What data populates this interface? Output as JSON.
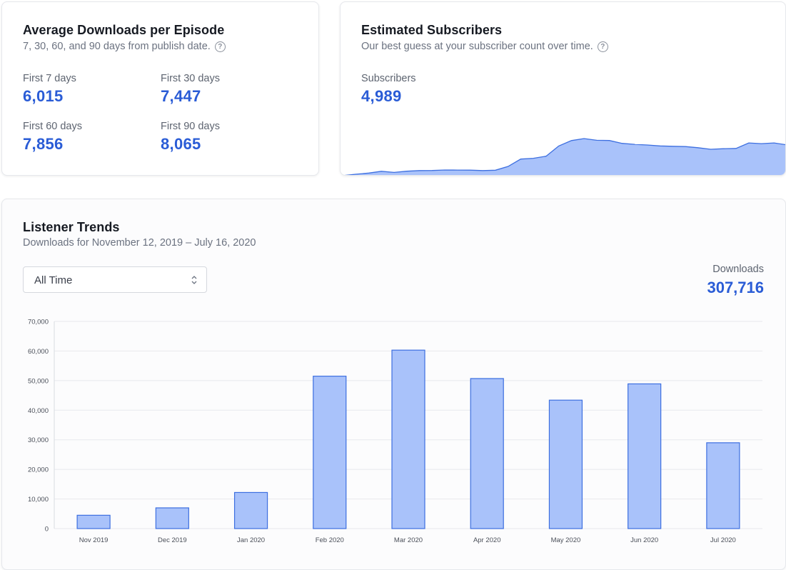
{
  "avg_downloads": {
    "title": "Average Downloads per Episode",
    "subtitle": "7, 30, 60, and 90 days from publish date.",
    "help_icon": "question-circle-icon",
    "stats": [
      {
        "label": "First 7 days",
        "value": "6,015"
      },
      {
        "label": "First 30 days",
        "value": "7,447"
      },
      {
        "label": "First 60 days",
        "value": "7,856"
      },
      {
        "label": "First 90 days",
        "value": "8,065"
      }
    ]
  },
  "subscribers": {
    "title": "Estimated Subscribers",
    "subtitle": "Our best guess at your subscriber count over time.",
    "help_icon": "question-circle-icon",
    "label": "Subscribers",
    "value": "4,989",
    "sparkline": [
      30,
      290,
      520,
      870,
      640,
      890,
      1010,
      1030,
      1130,
      1110,
      1100,
      1010,
      1080,
      1830,
      3270,
      3420,
      3830,
      5840,
      6910,
      7300,
      6960,
      6920,
      6360,
      6160,
      6030,
      5860,
      5780,
      5730,
      5500,
      5200,
      5310,
      5360,
      6440,
      6300,
      6440,
      6060
    ],
    "fill_color": "#a9c2fa",
    "line_color": "#3d6fe0"
  },
  "trends": {
    "title": "Listener Trends",
    "subtitle": "Downloads for November 12, 2019 – July 16, 2020",
    "range_selected": "All Time",
    "range_icon": "chevron-updown-icon",
    "downloads_label": "Downloads",
    "downloads_total": "307,716"
  },
  "chart_data": {
    "type": "bar",
    "categories": [
      "Nov 2019",
      "Dec 2019",
      "Jan 2020",
      "Feb 2020",
      "Mar 2020",
      "Apr 2020",
      "May 2020",
      "Jun 2020",
      "Jul 2020"
    ],
    "values": [
      4500,
      7000,
      12200,
      51500,
      60300,
      50700,
      43400,
      48900,
      29000
    ],
    "ylim": [
      0,
      70000
    ],
    "yticks": [
      "0",
      "10,000",
      "20,000",
      "30,000",
      "40,000",
      "50,000",
      "60,000",
      "70,000"
    ],
    "ytick_values": [
      0,
      10000,
      20000,
      30000,
      40000,
      50000,
      60000,
      70000
    ],
    "grid": true,
    "bar_fill": "#a9c2fa",
    "bar_stroke": "#3d6fe0"
  },
  "colors": {
    "accent": "#2a5cd6"
  }
}
